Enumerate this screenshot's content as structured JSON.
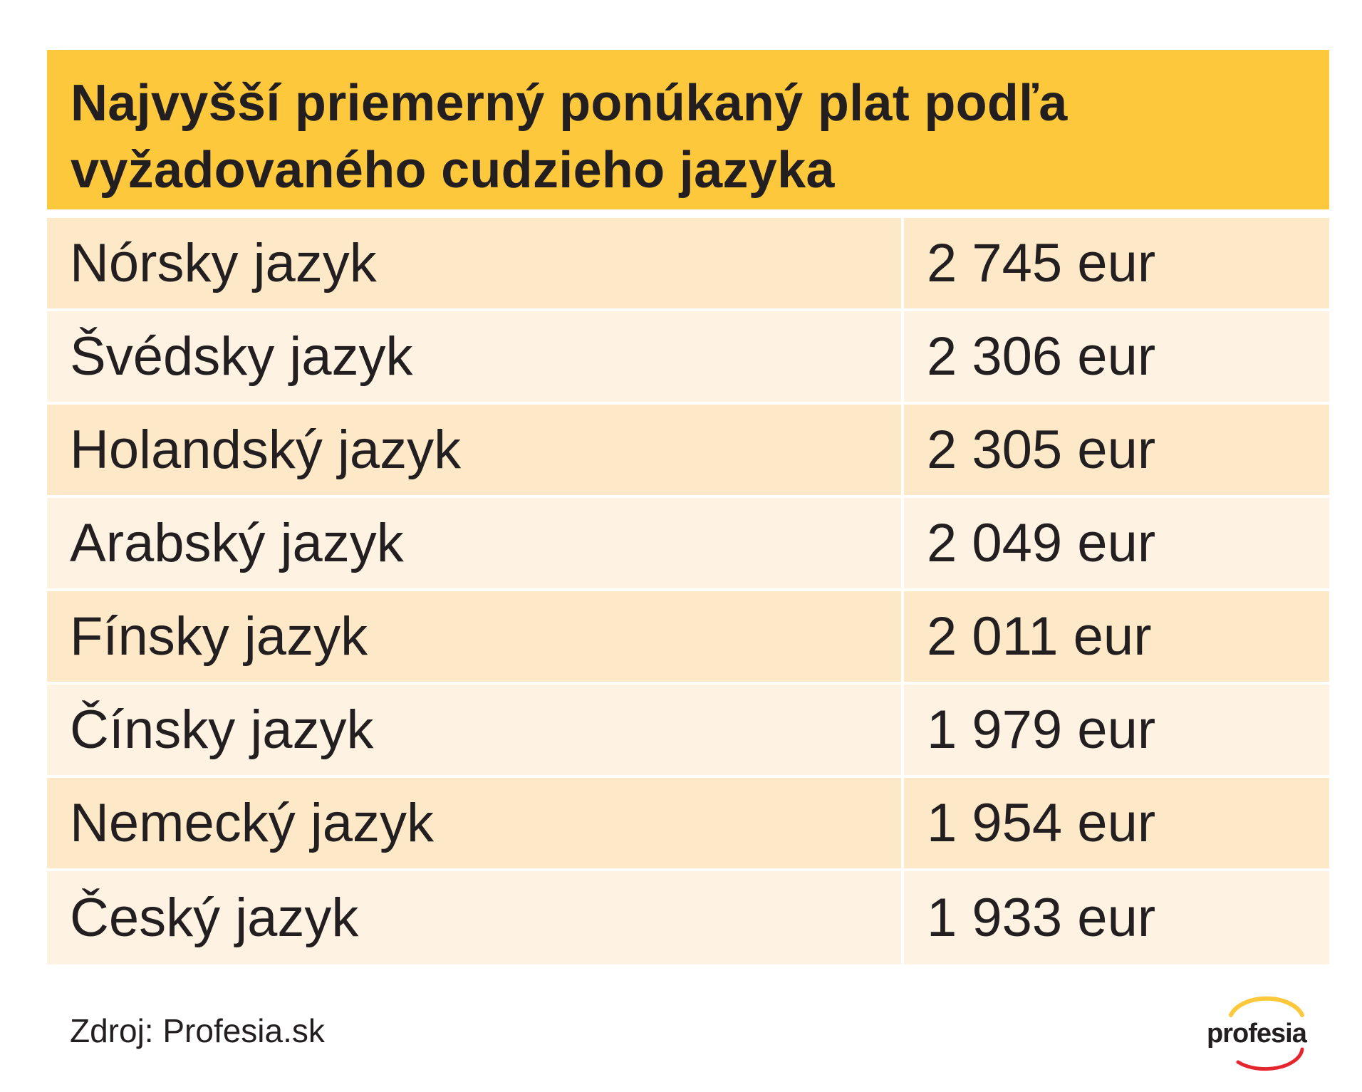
{
  "title_line1": "Najvyšší priemerný ponúkaný plat podľa",
  "title_line2": "vyžadovaného cudzieho jazyka",
  "colors": {
    "header_bg": "#fdc83b",
    "row_dark": "#fde8c8",
    "row_light": "#fef3e3",
    "logo_red": "#e4262f",
    "logo_yellow": "#fdc83b"
  },
  "chart_data": {
    "type": "table",
    "title": "Najvyšší priemerný ponúkaný plat podľa vyžadovaného cudzieho jazyka",
    "rows": [
      {
        "label": "Nórsky jazyk",
        "value_text": "2 745 eur",
        "value": 2745
      },
      {
        "label": "Švédsky jazyk",
        "value_text": "2 306 eur",
        "value": 2306
      },
      {
        "label": "Holandský jazyk",
        "value_text": "2 305 eur",
        "value": 2305
      },
      {
        "label": "Arabský jazyk",
        "value_text": "2 049 eur",
        "value": 2049
      },
      {
        "label": "Fínsky jazyk",
        "value_text": "2 011 eur",
        "value": 2011
      },
      {
        "label": "Čínsky jazyk",
        "value_text": "1 979 eur",
        "value": 1979
      },
      {
        "label": "Nemecký jazyk",
        "value_text": "1 954 eur",
        "value": 1954
      },
      {
        "label": "Český jazyk",
        "value_text": "1 933 eur",
        "value": 1933
      }
    ]
  },
  "source": "Zdroj: Profesia.sk",
  "logo_text": "profesia",
  "logo_icon": "profesia-logo-icon"
}
